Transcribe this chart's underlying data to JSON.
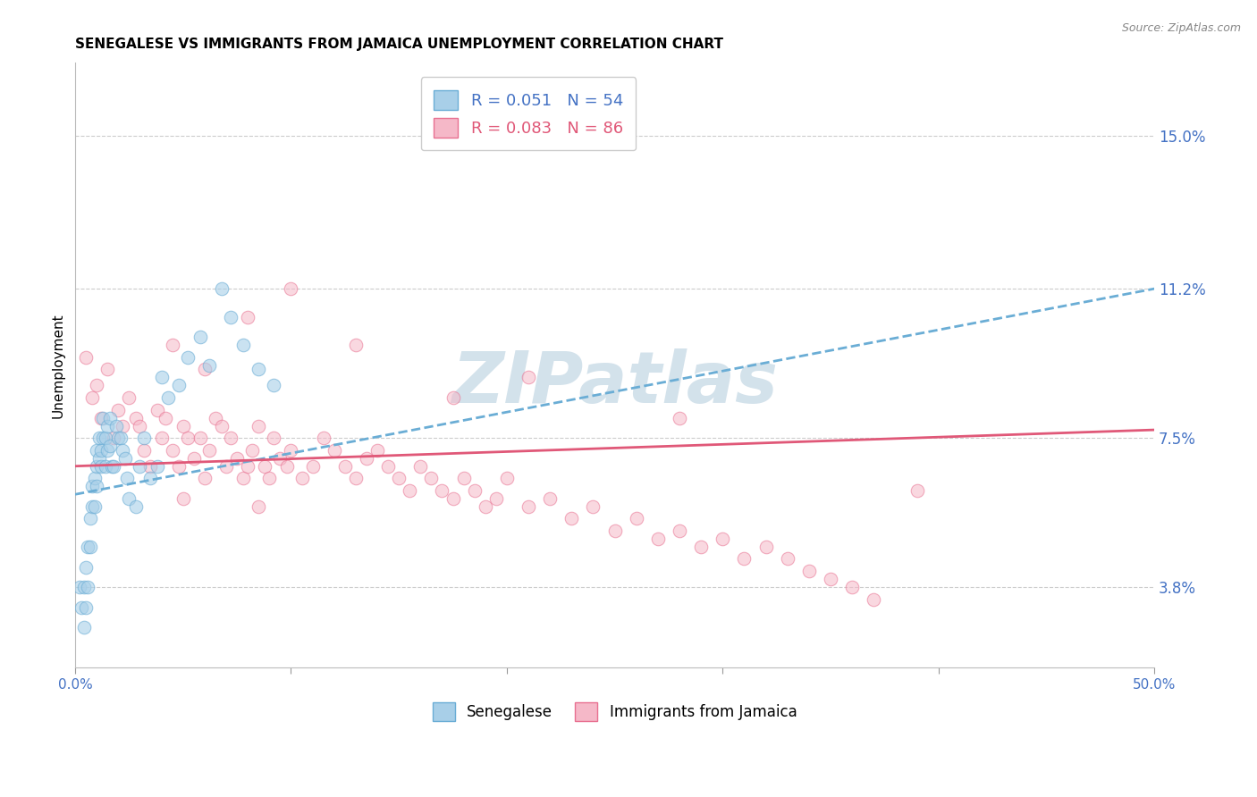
{
  "title": "SENEGALESE VS IMMIGRANTS FROM JAMAICA UNEMPLOYMENT CORRELATION CHART",
  "source": "Source: ZipAtlas.com",
  "ylabel": "Unemployment",
  "ytick_labels": [
    "3.8%",
    "7.5%",
    "11.2%",
    "15.0%"
  ],
  "ytick_values": [
    0.038,
    0.075,
    0.112,
    0.15
  ],
  "xlim": [
    0.0,
    0.5
  ],
  "ylim": [
    0.018,
    0.168
  ],
  "legend_label_senegalese": "Senegalese",
  "legend_label_jamaica": "Immigrants from Jamaica",
  "scatter_blue": {
    "color": "#a8cfe8",
    "edgecolor": "#6aadd5",
    "alpha": 0.6,
    "size": 110,
    "x": [
      0.002,
      0.003,
      0.004,
      0.004,
      0.005,
      0.005,
      0.006,
      0.006,
      0.007,
      0.007,
      0.008,
      0.008,
      0.009,
      0.009,
      0.01,
      0.01,
      0.01,
      0.011,
      0.011,
      0.012,
      0.012,
      0.013,
      0.013,
      0.014,
      0.014,
      0.015,
      0.015,
      0.016,
      0.016,
      0.017,
      0.018,
      0.019,
      0.02,
      0.021,
      0.022,
      0.023,
      0.024,
      0.025,
      0.028,
      0.03,
      0.032,
      0.035,
      0.038,
      0.04,
      0.043,
      0.048,
      0.052,
      0.058,
      0.062,
      0.068,
      0.072,
      0.078,
      0.085,
      0.092
    ],
    "y": [
      0.038,
      0.033,
      0.038,
      0.028,
      0.033,
      0.043,
      0.048,
      0.038,
      0.055,
      0.048,
      0.058,
      0.063,
      0.065,
      0.058,
      0.068,
      0.063,
      0.072,
      0.07,
      0.075,
      0.068,
      0.072,
      0.075,
      0.08,
      0.068,
      0.075,
      0.072,
      0.078,
      0.08,
      0.073,
      0.068,
      0.068,
      0.078,
      0.075,
      0.075,
      0.072,
      0.07,
      0.065,
      0.06,
      0.058,
      0.068,
      0.075,
      0.065,
      0.068,
      0.09,
      0.085,
      0.088,
      0.095,
      0.1,
      0.093,
      0.112,
      0.105,
      0.098,
      0.092,
      0.088
    ]
  },
  "scatter_pink": {
    "color": "#f5b8c8",
    "edgecolor": "#e87090",
    "alpha": 0.55,
    "size": 110,
    "x": [
      0.005,
      0.008,
      0.01,
      0.012,
      0.015,
      0.018,
      0.02,
      0.022,
      0.025,
      0.028,
      0.03,
      0.032,
      0.035,
      0.038,
      0.04,
      0.042,
      0.045,
      0.048,
      0.05,
      0.052,
      0.055,
      0.058,
      0.06,
      0.062,
      0.065,
      0.068,
      0.07,
      0.072,
      0.075,
      0.078,
      0.08,
      0.082,
      0.085,
      0.088,
      0.09,
      0.092,
      0.095,
      0.098,
      0.1,
      0.105,
      0.11,
      0.115,
      0.12,
      0.125,
      0.13,
      0.135,
      0.14,
      0.145,
      0.15,
      0.155,
      0.16,
      0.165,
      0.17,
      0.175,
      0.18,
      0.185,
      0.19,
      0.195,
      0.2,
      0.21,
      0.22,
      0.23,
      0.24,
      0.25,
      0.26,
      0.27,
      0.28,
      0.29,
      0.3,
      0.31,
      0.32,
      0.33,
      0.34,
      0.35,
      0.36,
      0.37,
      0.045,
      0.06,
      0.08,
      0.1,
      0.13,
      0.175,
      0.21,
      0.28,
      0.39,
      0.05,
      0.085
    ],
    "y": [
      0.095,
      0.085,
      0.088,
      0.08,
      0.092,
      0.075,
      0.082,
      0.078,
      0.085,
      0.08,
      0.078,
      0.072,
      0.068,
      0.082,
      0.075,
      0.08,
      0.072,
      0.068,
      0.078,
      0.075,
      0.07,
      0.075,
      0.065,
      0.072,
      0.08,
      0.078,
      0.068,
      0.075,
      0.07,
      0.065,
      0.068,
      0.072,
      0.078,
      0.068,
      0.065,
      0.075,
      0.07,
      0.068,
      0.072,
      0.065,
      0.068,
      0.075,
      0.072,
      0.068,
      0.065,
      0.07,
      0.072,
      0.068,
      0.065,
      0.062,
      0.068,
      0.065,
      0.062,
      0.06,
      0.065,
      0.062,
      0.058,
      0.06,
      0.065,
      0.058,
      0.06,
      0.055,
      0.058,
      0.052,
      0.055,
      0.05,
      0.052,
      0.048,
      0.05,
      0.045,
      0.048,
      0.045,
      0.042,
      0.04,
      0.038,
      0.035,
      0.098,
      0.092,
      0.105,
      0.112,
      0.098,
      0.085,
      0.09,
      0.08,
      0.062,
      0.06,
      0.058
    ]
  },
  "trendline_blue": {
    "color": "#6aadd5",
    "linestyle": "dashed",
    "linewidth": 2.0,
    "x_start": 0.0,
    "x_end": 0.5,
    "y_start": 0.061,
    "y_end": 0.112
  },
  "trendline_pink": {
    "color": "#e05878",
    "linestyle": "solid",
    "linewidth": 2.0,
    "x_start": 0.0,
    "x_end": 0.5,
    "y_start": 0.068,
    "y_end": 0.077
  },
  "watermark": "ZIPatlas",
  "watermark_color": "#ccdde8",
  "background_color": "#ffffff",
  "title_fontsize": 11,
  "axis_label_color": "#4472c4",
  "grid_color": "#cccccc",
  "grid_linestyle": "--"
}
